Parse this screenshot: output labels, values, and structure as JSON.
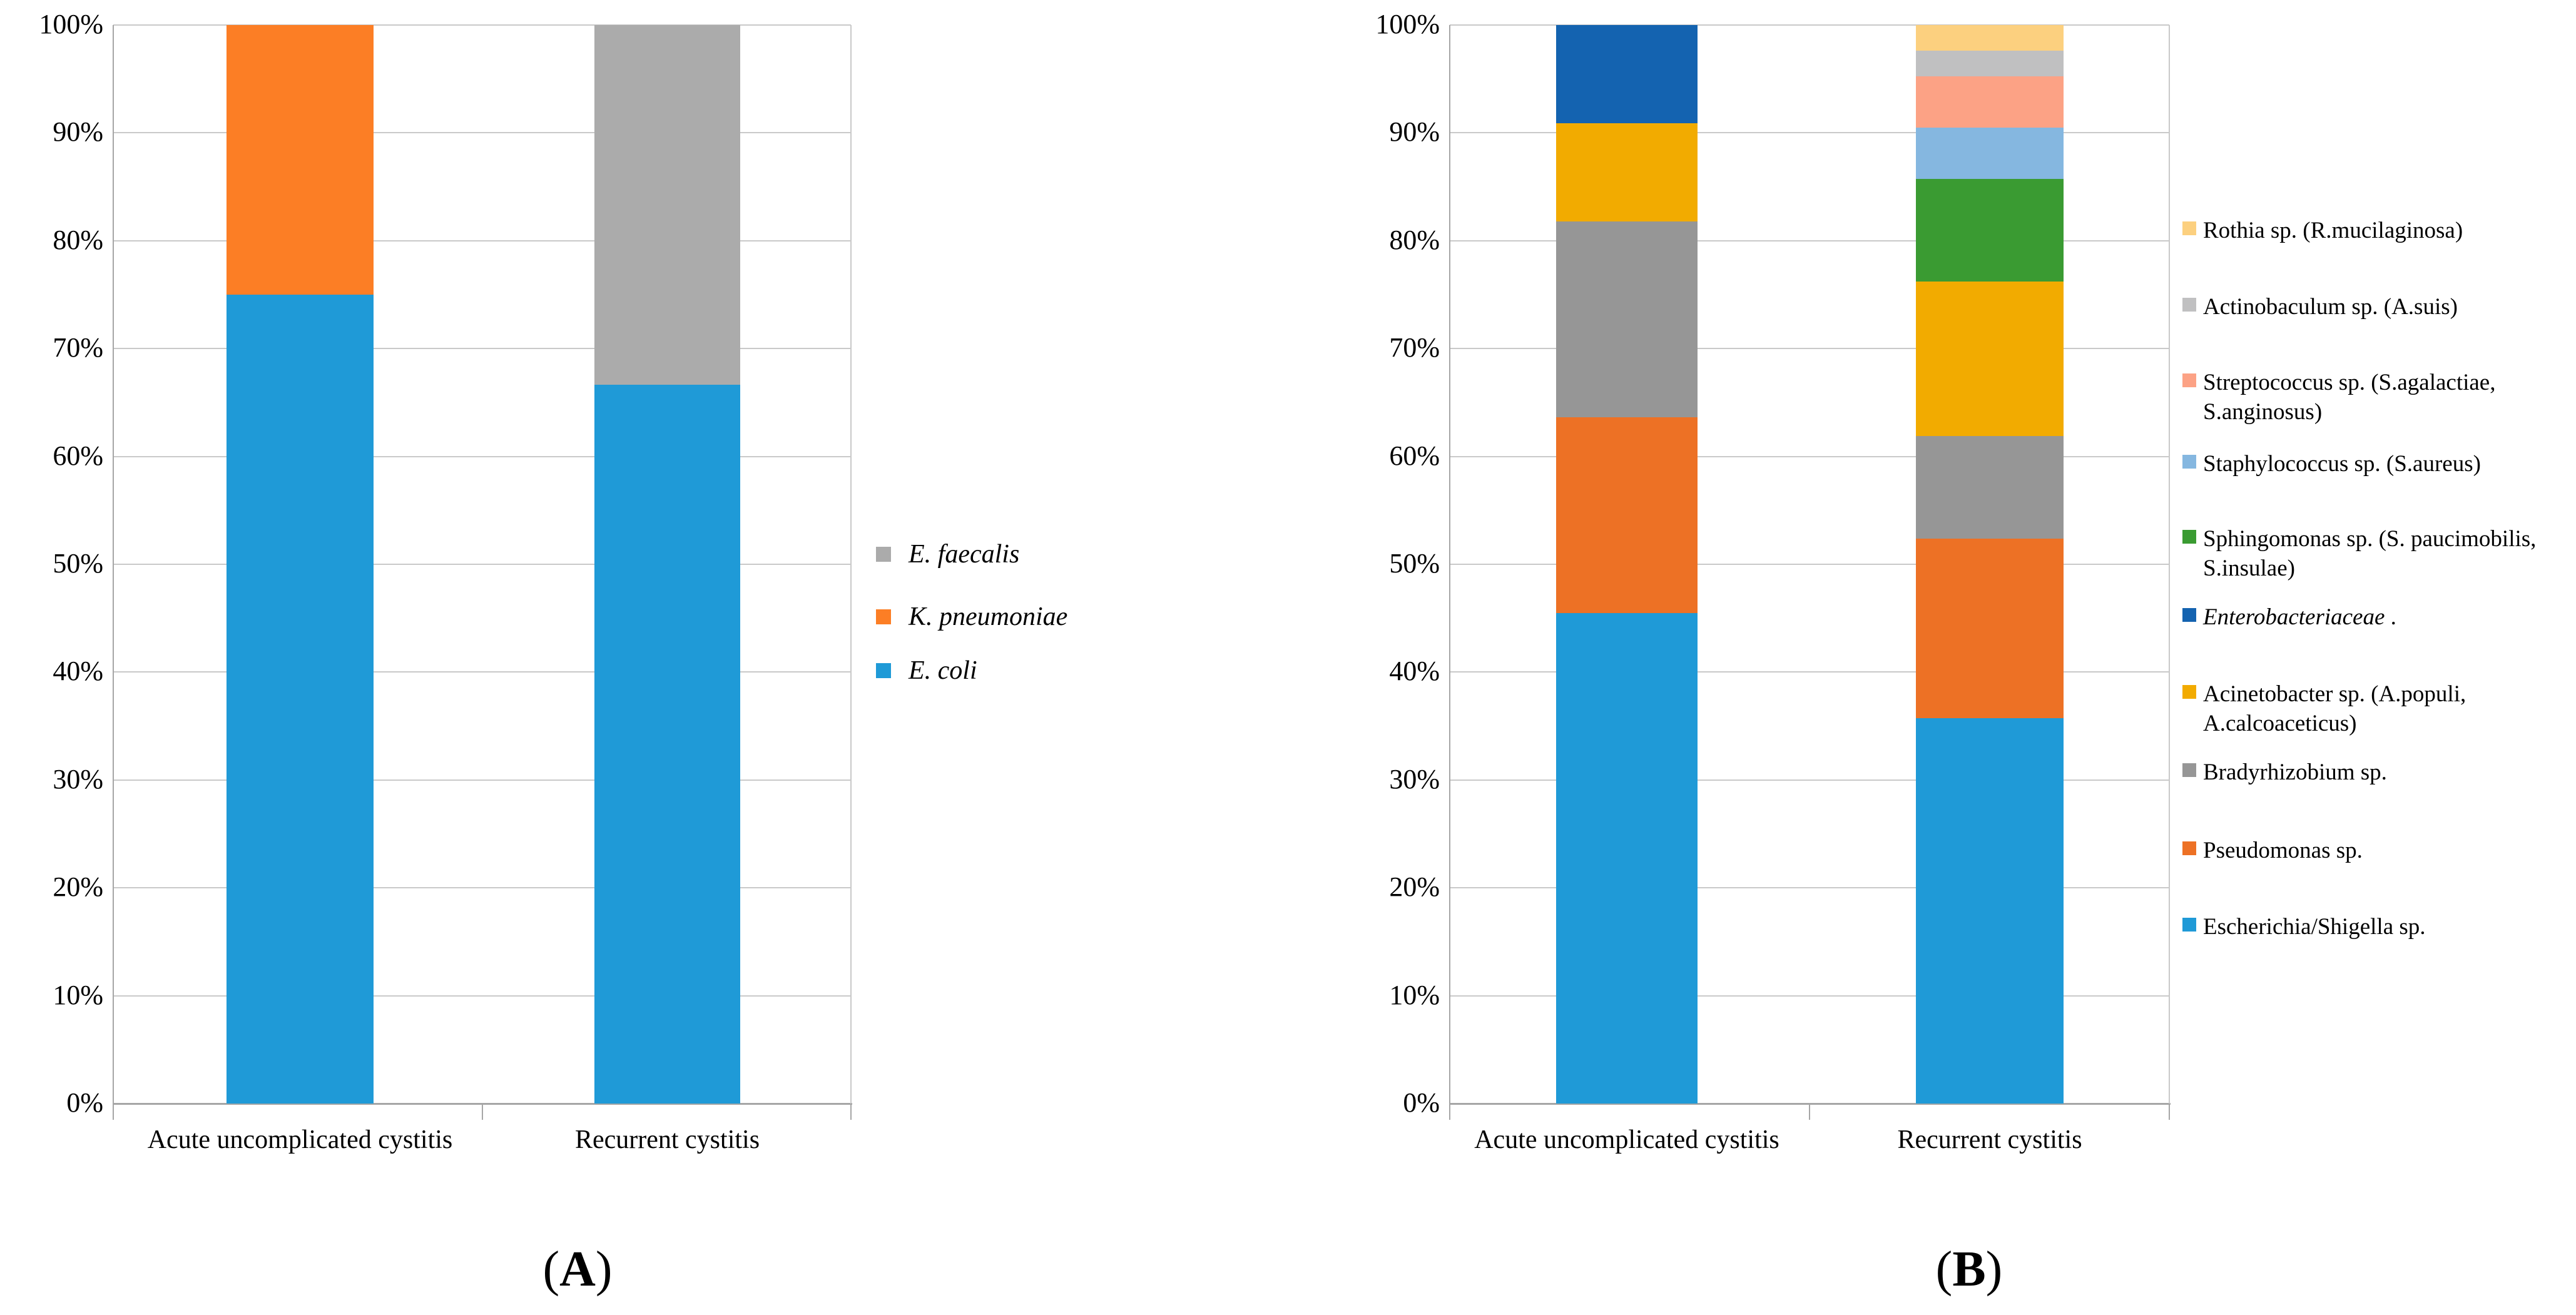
{
  "chart_data": [
    {
      "id": "A",
      "type": "bar",
      "stacked": true,
      "units": "percent",
      "title": "",
      "caption_open": "(",
      "caption_letter": "A",
      "caption_close": ")",
      "categories": [
        "Acute uncomplicated cystitis",
        "Recurrent cystitis"
      ],
      "y_axis": {
        "tick_labels": [
          "0%",
          "10%",
          "20%",
          "30%",
          "40%",
          "50%",
          "60%",
          "70%",
          "80%",
          "90%",
          "100%"
        ],
        "ylim": [
          0,
          100
        ],
        "grid": true
      },
      "legend_position": "right",
      "series": [
        {
          "name": "E. coli",
          "italic": true,
          "color": "#1F9AD7",
          "values": [
            75,
            66.67
          ]
        },
        {
          "name": "K. pneumoniae",
          "italic": true,
          "color": "#FC7E25",
          "values": [
            25,
            0
          ]
        },
        {
          "name": "E. faecalis",
          "italic": true,
          "color": "#ABABAB",
          "values": [
            0,
            33.33
          ]
        }
      ]
    },
    {
      "id": "B",
      "type": "bar",
      "stacked": true,
      "units": "percent",
      "title": "",
      "caption_open": "(",
      "caption_letter": "B",
      "caption_close": ")",
      "categories": [
        "Acute uncomplicated cystitis",
        "Recurrent cystitis"
      ],
      "y_axis": {
        "tick_labels": [
          "0%",
          "10%",
          "20%",
          "30%",
          "40%",
          "50%",
          "60%",
          "70%",
          "80%",
          "90%",
          "100%"
        ],
        "ylim": [
          0,
          100
        ],
        "grid": true
      },
      "legend_position": "right",
      "series": [
        {
          "name": "Escherichia/Shigella sp.",
          "color": "#1F9AD7",
          "values": [
            45.45,
            35.71
          ]
        },
        {
          "name": "Pseudomonas sp.",
          "color": "#ED7125",
          "values": [
            18.18,
            16.67
          ]
        },
        {
          "name": "Bradyrhizobium sp.",
          "color": "#969696",
          "values": [
            18.18,
            9.52
          ]
        },
        {
          "name": "Acinetobacter sp. (A.populi, A.calcoaceticus)",
          "color": "#F2AB00",
          "values": [
            9.09,
            14.29
          ]
        },
        {
          "name": "Enterobacteriaceae",
          "trailing": " .",
          "italic": true,
          "color": "#1463B0",
          "values": [
            9.09,
            0
          ]
        },
        {
          "name": "Sphingomonas sp. (S. paucimobilis, S.insulae)",
          "color": "#3A9B32",
          "values": [
            0,
            9.52
          ]
        },
        {
          "name": "Staphylococcus sp. (S.aureus)",
          "color": "#85B7E0",
          "values": [
            0,
            4.76
          ]
        },
        {
          "name": "Streptococcus sp. (S.agalactiae, S.anginosus)",
          "color": "#FCA285",
          "values": [
            0,
            4.76
          ]
        },
        {
          "name": "Actinobaculum sp. (A.suis)",
          "color": "#C0C0C1",
          "values": [
            0,
            2.38
          ]
        },
        {
          "name": "Rothia sp. (R.mucilaginosa)",
          "color": "#FCD07F",
          "values": [
            0,
            2.38
          ]
        }
      ]
    }
  ]
}
